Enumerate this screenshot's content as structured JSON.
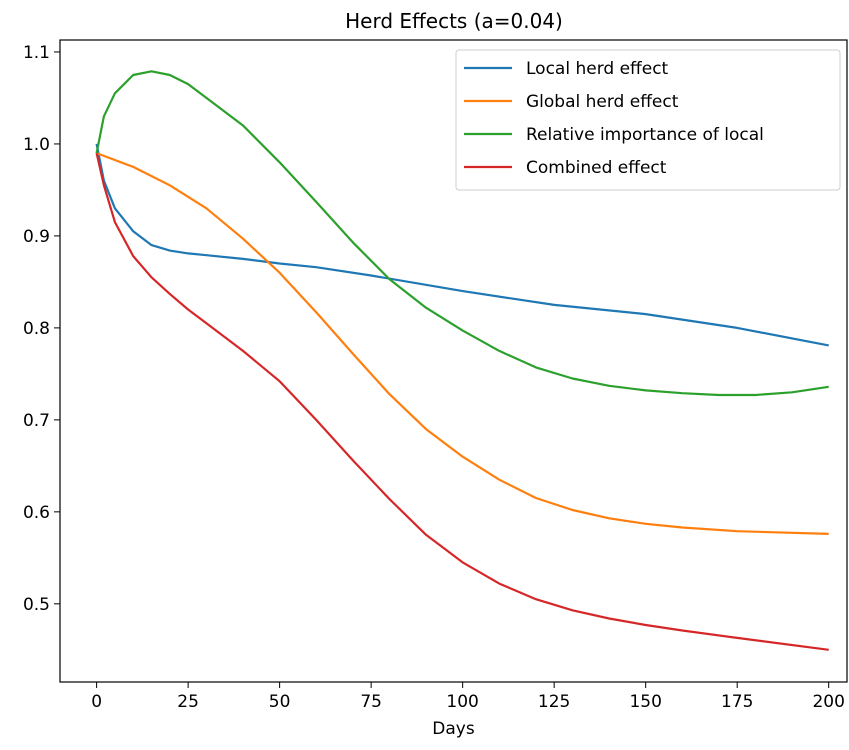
{
  "chart_data": {
    "type": "line",
    "title": "Herd Effects (a=0.04)",
    "xlabel": "Days",
    "ylabel": "",
    "xlim": [
      -10,
      205
    ],
    "ylim": [
      0.415,
      1.113
    ],
    "xticks": [
      0,
      25,
      50,
      75,
      100,
      125,
      150,
      175,
      200
    ],
    "yticks": [
      0.5,
      0.6,
      0.7,
      0.8,
      0.9,
      1.0,
      1.1
    ],
    "xtick_labels": [
      "0",
      "25",
      "50",
      "75",
      "100",
      "125",
      "150",
      "175",
      "200"
    ],
    "ytick_labels": [
      "0.5",
      "0.6",
      "0.7",
      "0.8",
      "0.9",
      "1.0",
      "1.1"
    ],
    "grid": false,
    "legend_position": "upper-right",
    "series": [
      {
        "name": "Local herd effect",
        "color": "#1f77b4",
        "x": [
          0,
          2,
          5,
          10,
          15,
          20,
          25,
          30,
          40,
          50,
          60,
          75,
          100,
          125,
          150,
          175,
          200
        ],
        "y": [
          1.0,
          0.96,
          0.93,
          0.905,
          0.89,
          0.884,
          0.881,
          0.879,
          0.875,
          0.87,
          0.866,
          0.857,
          0.84,
          0.825,
          0.815,
          0.8,
          0.781
        ]
      },
      {
        "name": "Global herd effect",
        "color": "#ff7f0e",
        "x": [
          0,
          10,
          20,
          30,
          40,
          50,
          60,
          70,
          80,
          90,
          100,
          110,
          120,
          130,
          140,
          150,
          160,
          175,
          200
        ],
        "y": [
          0.99,
          0.975,
          0.955,
          0.93,
          0.897,
          0.86,
          0.817,
          0.772,
          0.728,
          0.69,
          0.66,
          0.635,
          0.615,
          0.602,
          0.593,
          0.587,
          0.583,
          0.579,
          0.576
        ]
      },
      {
        "name": "Relative importance of local",
        "color": "#2ca02c",
        "x": [
          0,
          2,
          5,
          10,
          15,
          20,
          25,
          30,
          40,
          50,
          60,
          70,
          80,
          90,
          100,
          110,
          120,
          130,
          140,
          150,
          160,
          170,
          180,
          190,
          200
        ],
        "y": [
          0.99,
          1.03,
          1.055,
          1.075,
          1.079,
          1.075,
          1.065,
          1.05,
          1.02,
          0.98,
          0.937,
          0.893,
          0.853,
          0.822,
          0.797,
          0.775,
          0.757,
          0.745,
          0.737,
          0.732,
          0.729,
          0.727,
          0.727,
          0.73,
          0.736
        ]
      },
      {
        "name": "Combined effect",
        "color": "#d62728",
        "x": [
          0,
          2,
          5,
          10,
          15,
          20,
          25,
          30,
          40,
          50,
          60,
          70,
          80,
          90,
          100,
          110,
          120,
          130,
          140,
          150,
          160,
          175,
          200
        ],
        "y": [
          0.99,
          0.955,
          0.915,
          0.878,
          0.855,
          0.837,
          0.82,
          0.805,
          0.775,
          0.742,
          0.7,
          0.656,
          0.614,
          0.575,
          0.545,
          0.522,
          0.505,
          0.493,
          0.484,
          0.477,
          0.471,
          0.463,
          0.45
        ]
      }
    ]
  }
}
